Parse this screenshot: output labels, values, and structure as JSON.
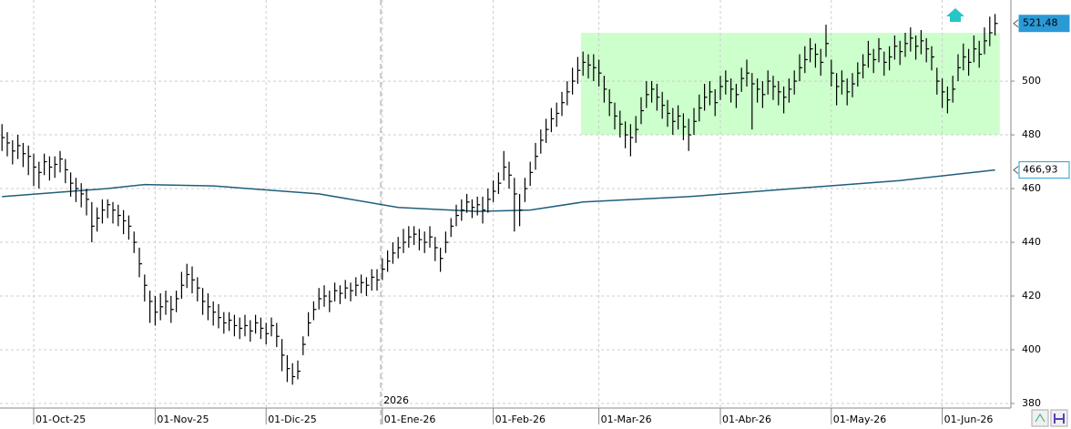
{
  "chart_data": {
    "type": "ohlc",
    "color": "#000000",
    "high": [
      484,
      481,
      478,
      480,
      477,
      476,
      473,
      470,
      473,
      472,
      472,
      474,
      471,
      466,
      464,
      462,
      460,
      455,
      453,
      456,
      456,
      455,
      454,
      452,
      450,
      444,
      438,
      428,
      422,
      420,
      421,
      422,
      420,
      422,
      429,
      432,
      431,
      427,
      423,
      421,
      418,
      417,
      414,
      414,
      413,
      412,
      413,
      411,
      413,
      412,
      410,
      412,
      410,
      404,
      398,
      395,
      396,
      405,
      414,
      418,
      423,
      424,
      422,
      425,
      424,
      426,
      425,
      427,
      428,
      427,
      430,
      430,
      434,
      437,
      440,
      442,
      445,
      446,
      446,
      445,
      444,
      446,
      442,
      438,
      444,
      449,
      454,
      456,
      458,
      456,
      457,
      457,
      460,
      463,
      466,
      474,
      470,
      464,
      458,
      464,
      470,
      477,
      482,
      486,
      490,
      492,
      496,
      500,
      505,
      509,
      511,
      510,
      510,
      508,
      502,
      497,
      492,
      489,
      485,
      484,
      487,
      494,
      500,
      500,
      499,
      496,
      493,
      490,
      491,
      488,
      486,
      490,
      495,
      499,
      500,
      497,
      502,
      504,
      501,
      499,
      505,
      508,
      503,
      501,
      500,
      504,
      502,
      500,
      498,
      501,
      504,
      510,
      513,
      516,
      514,
      512,
      521,
      508,
      503,
      504,
      501,
      503,
      507,
      510,
      515,
      512,
      516,
      511,
      513,
      517,
      515,
      518,
      520,
      517,
      519,
      516,
      513,
      505,
      501,
      498,
      502,
      510,
      514,
      512,
      517,
      515,
      520,
      524,
      525
    ],
    "low": [
      474,
      472,
      469,
      471,
      468,
      465,
      461,
      460,
      465,
      463,
      464,
      466,
      462,
      457,
      455,
      453,
      450,
      440,
      444,
      447,
      449,
      447,
      446,
      443,
      441,
      436,
      427,
      418,
      410,
      409,
      411,
      413,
      410,
      414,
      419,
      423,
      421,
      418,
      413,
      411,
      409,
      408,
      406,
      407,
      405,
      404,
      405,
      403,
      406,
      404,
      402,
      405,
      401,
      392,
      388,
      387,
      389,
      398,
      405,
      411,
      415,
      416,
      414,
      418,
      417,
      419,
      418,
      420,
      421,
      420,
      422,
      422,
      426,
      429,
      432,
      434,
      436,
      438,
      439,
      437,
      436,
      438,
      433,
      429,
      436,
      442,
      446,
      448,
      451,
      449,
      450,
      447,
      451,
      455,
      458,
      463,
      460,
      444,
      446,
      455,
      461,
      467,
      473,
      477,
      481,
      483,
      487,
      491,
      495,
      499,
      502,
      501,
      500,
      498,
      492,
      487,
      482,
      479,
      475,
      472,
      477,
      484,
      490,
      492,
      489,
      486,
      483,
      480,
      482,
      478,
      474,
      480,
      485,
      489,
      491,
      487,
      493,
      495,
      492,
      490,
      496,
      498,
      482,
      492,
      490,
      495,
      493,
      491,
      488,
      492,
      495,
      500,
      503,
      507,
      505,
      502,
      509,
      498,
      491,
      495,
      491,
      494,
      498,
      501,
      505,
      503,
      507,
      502,
      504,
      508,
      506,
      509,
      511,
      508,
      510,
      507,
      504,
      495,
      490,
      488,
      492,
      500,
      504,
      502,
      507,
      505,
      510,
      513,
      517
    ],
    "close": [
      479,
      477,
      474,
      476,
      473,
      472,
      468,
      466,
      470,
      468,
      469,
      471,
      467,
      462,
      460,
      458,
      456,
      446,
      449,
      452,
      454,
      452,
      450,
      448,
      446,
      440,
      432,
      424,
      418,
      414,
      416,
      418,
      415,
      419,
      424,
      428,
      426,
      423,
      418,
      416,
      414,
      412,
      410,
      411,
      409,
      408,
      409,
      407,
      410,
      408,
      406,
      409,
      405,
      398,
      393,
      390,
      392,
      402,
      410,
      415,
      419,
      420,
      418,
      422,
      421,
      423,
      422,
      424,
      425,
      424,
      427,
      426,
      430,
      433,
      436,
      438,
      440,
      442,
      443,
      441,
      440,
      442,
      438,
      434,
      440,
      446,
      450,
      452,
      455,
      453,
      454,
      452,
      456,
      459,
      462,
      468,
      465,
      458,
      452,
      460,
      466,
      472,
      478,
      482,
      486,
      488,
      492,
      496,
      500,
      504,
      507,
      506,
      505,
      503,
      497,
      492,
      487,
      484,
      480,
      479,
      482,
      489,
      495,
      497,
      494,
      491,
      488,
      485,
      487,
      483,
      480,
      485,
      490,
      494,
      496,
      492,
      498,
      500,
      497,
      495,
      501,
      503,
      499,
      497,
      495,
      500,
      498,
      496,
      494,
      497,
      500,
      505,
      508,
      512,
      510,
      507,
      514,
      503,
      498,
      500,
      496,
      499,
      503,
      506,
      510,
      508,
      512,
      507,
      509,
      513,
      511,
      514,
      516,
      513,
      515,
      512,
      509,
      500,
      496,
      493,
      497,
      505,
      509,
      507,
      512,
      510,
      515,
      518,
      521.48
    ],
    "xlim": [
      -0.38,
      191
    ],
    "ylim": [
      378.3,
      530.2
    ],
    "yticks": [
      380,
      400,
      420,
      440,
      460,
      480,
      500
    ],
    "xticks": [
      {
        "value": 6,
        "label": "01-Oct-25"
      },
      {
        "value": 29,
        "label": "01-Nov-25"
      },
      {
        "value": 50,
        "label": "01-Dic-25"
      },
      {
        "value": 72,
        "label": "01-Ene-26"
      },
      {
        "value": 93,
        "label": "01-Feb-26"
      },
      {
        "value": 113,
        "label": "01-Mar-26"
      },
      {
        "value": 136,
        "label": "01-Abr-26"
      },
      {
        "value": 157,
        "label": "01-May-26"
      },
      {
        "value": 178,
        "label": "01-Jun-26"
      }
    ],
    "grid": true,
    "moving_average": {
      "color": "#1f5f7a",
      "x": [
        0,
        20,
        27,
        40,
        60,
        75,
        90,
        100,
        110,
        130,
        150,
        170,
        188
      ],
      "values": [
        457,
        460,
        461.5,
        461,
        458,
        453,
        451.5,
        452,
        455,
        457,
        460,
        463,
        466.93
      ]
    },
    "zone": {
      "color": "#ccffcc",
      "x": [
        109.6,
        188.9
      ],
      "y": [
        480,
        518
      ]
    },
    "last_labels": [
      {
        "value": 521.48,
        "label": "521,48",
        "fill": "#2a9ad6",
        "text_color": "#ffffff"
      },
      {
        "value": 466.93,
        "label": "466,93",
        "fill": "#ffffff",
        "text_color": "#000000"
      }
    ],
    "year_marker": {
      "value": 71.7,
      "label": "2026"
    }
  }
}
